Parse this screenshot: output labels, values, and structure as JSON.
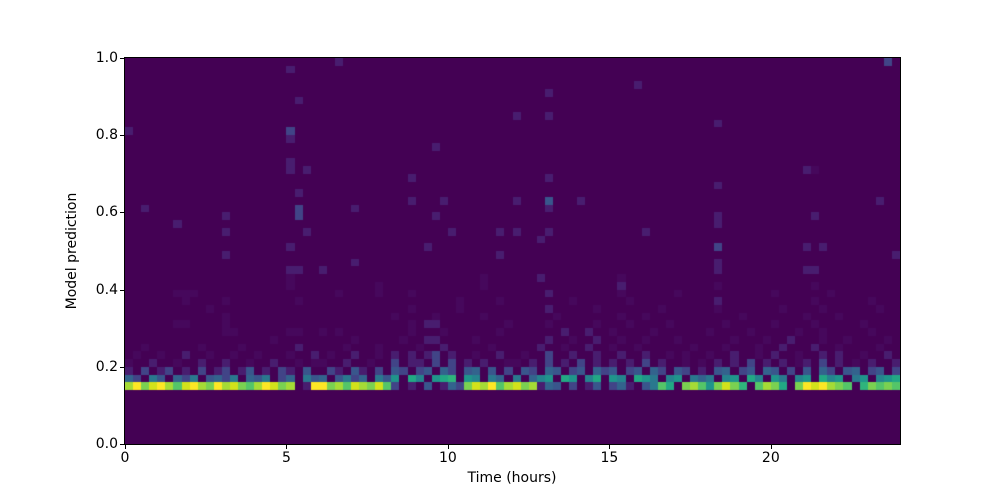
{
  "chart_data": {
    "type": "heatmap",
    "title": "",
    "xlabel": "Time (hours)",
    "ylabel": "Model prediction",
    "x_range": [
      0,
      24
    ],
    "y_range": [
      0.0,
      1.0
    ],
    "x_ticks": [
      0,
      5,
      10,
      15,
      20
    ],
    "y_ticks": [
      "0.0",
      "0.2",
      "0.4",
      "0.6",
      "0.8",
      "1.0"
    ],
    "colormap": "viridis",
    "legend_position": "none",
    "grid_on": false,
    "grid_cols": 96,
    "grid_rows": 50,
    "cell_encoding": "hex intensity 0-15 per cell, index into palette; rows listed top (y=1.0) to bottom (y=0.0)",
    "palette": [
      "#440154",
      "#46085c",
      "#481d6f",
      "#414487",
      "#39568c",
      "#33638d",
      "#2a788e",
      "#25848e",
      "#1f958b",
      "#22a884",
      "#2fb47c",
      "#54c568",
      "#7ad151",
      "#a5db36",
      "#d2e21b",
      "#fde725"
    ],
    "grid": [
      "000000000000000000000000002000000000000000000000000000000000000000000000000000000000000000000030",
      "000000000000000000002000000000000000000000000000000000000000000000000000000000000000000000000000",
      "000000000000000000000000000000000000000000000000000000000000000000000000000000000000000000000000",
      "000000000000000000000000000000000000000000000000000000000000000200000000000000000000000000000000",
      "000000000000000000000000000000000000000000000000000020000000000000000000000000000000000000000000",
      "000000000000000000000200000000000000000000000000000000000000000000000000000000000000000000000000",
      "000000000000000000000000000000000000000000000000000000000000000000000000000000000000000000000000",
      "000000000000000000000000000000000000000000000000200020000000000000000000000000000000000000000000",
      "000000000000000000000000000000000000000000000000000000000000000000000000020000000000000000000000",
      "200000000000000000003000000000000000000000000000000000000000000000000000000000000000000000000000",
      "000000000000000000002000000000000000000000000000000000000000000000000000000000000000000000000000",
      "000000000000000000000000000000000000002000000000000000000000000000000000000000000000000000000000",
      "000000000000000000000000000000000000000000000000000000000000000000000000000000000000000000000000",
      "000000000000000000002000000000000000000000000000000000000000000000000000000000000000000000000000",
      "000000000000000000002020000000000000000000000000000000000000000000000000000000000000210000000000",
      "000000000000000000000000000000000002000000000000000020000000000000000000000000000000000000000000",
      "000000000000000000000000000000000000000000000000000000000000000000000000020000000000000000000000",
      "000000000000000000000200000000000000000000000000000000000000000000000000000000000000000000000000",
      "000000000000000000000000000000000002000200000000200040002000000000000000000000000000000000000200",
      "002000000000000000000300000020000000000000000000000020000000000000000000000000000000000000000000",
      "000000000000200000000300000000000000002000000000000000000000000000000000020000000000020000000000",
      "000000200000000000000000000000000000000000000000000000000000000000000000020000000000000000000000",
      "000000000000200000000020000000000000000020000020200020000000000020000000000000000000000000000000",
      "000000000000000000000000000000000000000000000000000200000000000000000000000000000000000000000000",
      "000000000000000000002000000000000000020000000000000000000000000000000000030000000000202000000000",
      "000000000000200000000000000000000000000000000020000000000000000000000000000000000000000000000002",
      "000000000000000000000000000020000000000000000000000000000000000000000000020000000000000000000000",
      "000000000000000000002200200000000000000000000000000000000000000000000000020000000000220000000000",
      "000000000000000000001000000000000000000000001000000200000000010000000000000000000000000000000000",
      "000000000000000000001000000000010000000000001000000000000000020000000000010000000000010000000000",
      "000000111000000000000000001000010001000000000000000020000000010000001000000000001000000100000000",
      "000000010000100000000100000000000000000001000010000000010000001000000000020000000000010000001000",
      "000000000010000000000000000000000001000001000000000020000010000000100000010000000100001000000100",
      "000000000000100000000000000000000100001000001000000001000000010010000000000010000000100010000000",
      "000000110000100000000000000000000001022000000001000010000010001000010000001000001000010000010000",
      "000000000000110000001100101000000001000100000010000000200200100001000000100001000001001000001000",
      "000000000000000000100000000010000010022000010000000020010020010010001000000100010020001001000010",
      "001000000100001000000200000100010000100200000100000200100200100100000010001000100200020010000100",
      "010010020010010010001002010020010202023020010020010030020020020020010100100200102001002020010020",
      "100200100200200100200101100200100302203030202001102030203020202030200101020203020201203020102002",
      "203023020302302402032040032042030430340530450403043054034053403405304302045034054030405304503403",
      "5306405360453605460350645046350648097089a0870650605780980790870986078065607809708607809780680789",
      "dfcefdbefdcfdecbdfecd02ffcdbedceb302040253cedfbdecd254030240352046b90cdb8ceca0bdc90cfefdcb0acbcb",
      "000000000000000000000000000000000000000000000000000000000000000000000000000000000000000000000000",
      "000000000000000000000000000000000000000000000000000000000000000000000000000000000000000000000000",
      "000000000000000000000000000000000000000000000000000000000000000000000000000000000000000000000000",
      "000000000000000000000000000000000000000000000000000000000000000000000000000000000000000000000000",
      "000000000000000000000000000000000000000000000000000000000000000000000000000000000000000000000000",
      "000000000000000000000000000000000000000000000000000000000000000000000000000000000000000000000000",
      "000000000000000000000000000000000000000000000000000000000000000000000000000000000000000000000000"
    ]
  }
}
